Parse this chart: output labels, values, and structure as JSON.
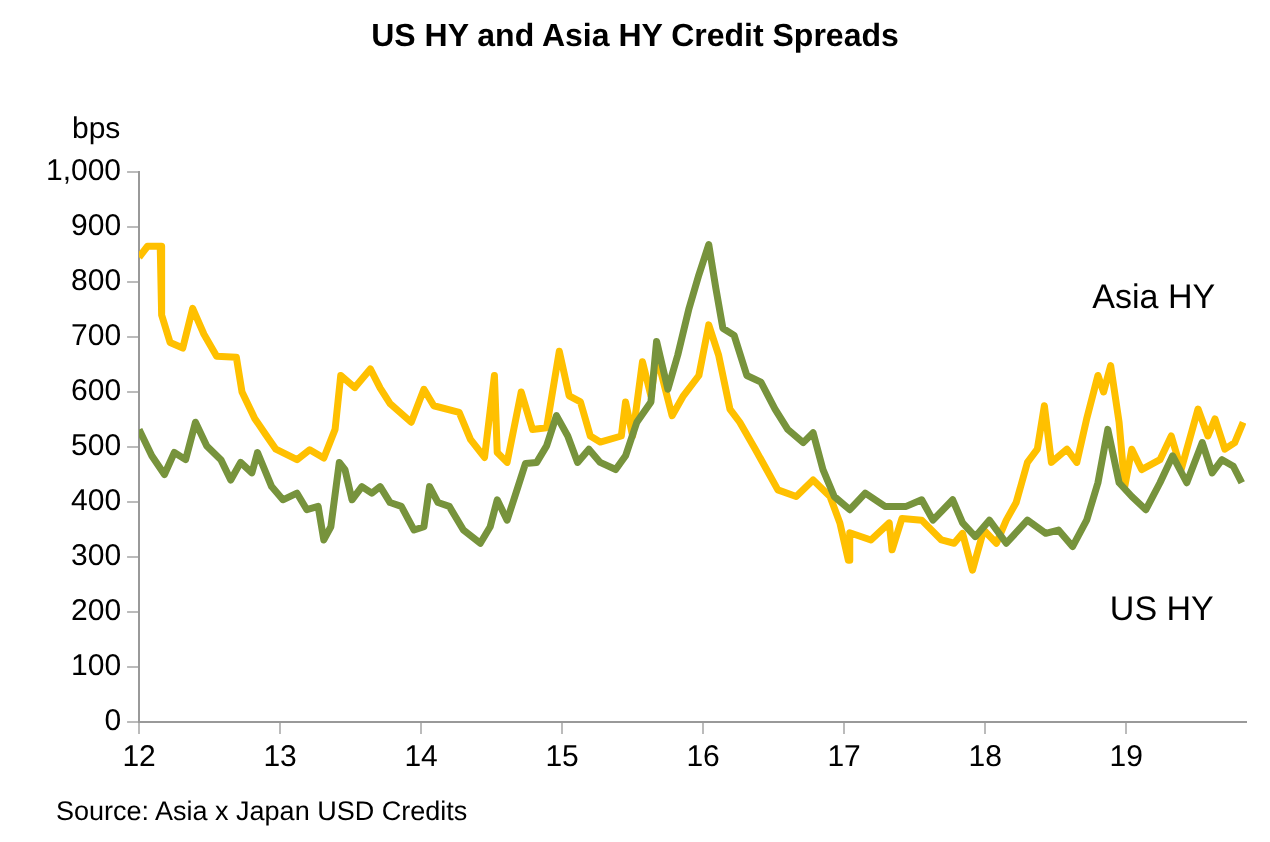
{
  "chart_data": {
    "type": "line",
    "title": "US HY and Asia HY Credit Spreads",
    "ylabel": "bps",
    "annotations": [
      "Source: Asia x Japan USD Credits"
    ],
    "xlim": [
      12,
      19.85
    ],
    "xticks": [
      12,
      13,
      14,
      15,
      16,
      17,
      18,
      19
    ],
    "ylim": [
      0,
      1000
    ],
    "yticks": [
      0,
      100,
      200,
      300,
      400,
      500,
      600,
      700,
      800,
      900,
      {
        "value": 1000,
        "label": "1,000"
      }
    ],
    "grid": false,
    "legend": false,
    "marker": "none",
    "line_style": "solid",
    "series": [
      {
        "name": "Asia HY",
        "color": "#ffc000",
        "x": [
          12.0,
          12.06,
          12.15,
          12.16,
          12.22,
          12.31,
          12.38,
          12.46,
          12.55,
          12.69,
          12.73,
          12.82,
          12.9,
          12.97,
          13.12,
          13.21,
          13.31,
          13.39,
          13.43,
          13.53,
          13.64,
          13.71,
          13.78,
          13.93,
          14.02,
          14.09,
          14.27,
          14.35,
          14.45,
          14.52,
          14.54,
          14.61,
          14.71,
          14.79,
          14.89,
          14.98,
          15.05,
          15.13,
          15.2,
          15.27,
          15.42,
          15.45,
          15.5,
          15.57,
          15.63,
          15.67,
          15.78,
          15.86,
          15.97,
          16.04,
          16.11,
          16.19,
          16.26,
          16.37,
          16.45,
          16.53,
          16.66,
          16.78,
          16.9,
          16.97,
          17.03,
          17.04,
          17.19,
          17.32,
          17.34,
          17.41,
          17.55,
          17.69,
          17.78,
          17.84,
          17.91,
          17.99,
          18.08,
          18.15,
          18.22,
          18.3,
          18.37,
          18.42,
          18.47,
          18.58,
          18.65,
          18.72,
          18.8,
          18.84,
          18.89,
          18.95,
          18.99,
          19.04,
          19.11,
          19.24,
          19.32,
          19.39,
          19.51,
          19.58,
          19.63,
          19.7,
          19.77,
          19.83
        ],
        "values": [
          845,
          865,
          865,
          740,
          690,
          680,
          752,
          705,
          665,
          663,
          600,
          552,
          522,
          496,
          477,
          495,
          480,
          532,
          630,
          608,
          642,
          607,
          579,
          545,
          605,
          575,
          563,
          514,
          481,
          630,
          490,
          472,
          600,
          532,
          535,
          674,
          593,
          582,
          520,
          509,
          520,
          582,
          520,
          655,
          593,
          667,
          557,
          593,
          630,
          722,
          667,
          569,
          545,
          496,
          459,
          422,
          410,
          440,
          410,
          362,
          294,
          344,
          331,
          362,
          313,
          370,
          367,
          331,
          325,
          343,
          276,
          349,
          325,
          367,
          399,
          472,
          496,
          575,
          472,
          496,
          472,
          551,
          630,
          600,
          648,
          545,
          428,
          496,
          459,
          477,
          520,
          459,
          569,
          520,
          551,
          496,
          508,
          545
        ]
      },
      {
        "name": "US HY",
        "color": "#77933c",
        "x": [
          12.0,
          12.09,
          12.18,
          12.25,
          12.33,
          12.4,
          12.48,
          12.58,
          12.65,
          12.72,
          12.8,
          12.84,
          12.94,
          13.02,
          13.12,
          13.19,
          13.27,
          13.31,
          13.36,
          13.42,
          13.46,
          13.51,
          13.58,
          13.65,
          13.71,
          13.78,
          13.86,
          13.95,
          14.02,
          14.06,
          14.12,
          14.2,
          14.3,
          14.42,
          14.49,
          14.54,
          14.61,
          14.68,
          14.74,
          14.82,
          14.89,
          14.96,
          15.04,
          15.11,
          15.19,
          15.27,
          15.38,
          15.45,
          15.53,
          15.63,
          15.67,
          15.75,
          15.82,
          15.9,
          15.97,
          16.04,
          16.09,
          16.14,
          16.22,
          16.31,
          16.41,
          16.51,
          16.6,
          16.71,
          16.78,
          16.85,
          16.93,
          17.04,
          17.15,
          17.29,
          17.44,
          17.55,
          17.63,
          17.77,
          17.84,
          17.93,
          18.03,
          18.15,
          18.3,
          18.43,
          18.52,
          18.62,
          18.72,
          18.8,
          18.87,
          18.95,
          19.04,
          19.14,
          19.24,
          19.33,
          19.43,
          19.54,
          19.61,
          19.68,
          19.76,
          19.82
        ],
        "values": [
          532,
          484,
          450,
          490,
          477,
          545,
          502,
          477,
          440,
          472,
          453,
          490,
          428,
          404,
          416,
          386,
          392,
          331,
          355,
          472,
          459,
          404,
          428,
          416,
          428,
          399,
          392,
          349,
          355,
          428,
          399,
          392,
          349,
          325,
          355,
          404,
          367,
          422,
          470,
          472,
          502,
          557,
          520,
          472,
          496,
          472,
          459,
          484,
          545,
          582,
          692,
          605,
          667,
          752,
          813,
          868,
          789,
          716,
          703,
          630,
          618,
          569,
          532,
          508,
          526,
          459,
          410,
          386,
          416,
          392,
          392,
          404,
          367,
          404,
          362,
          337,
          367,
          325,
          367,
          343,
          349,
          319,
          367,
          435,
          532,
          435,
          410,
          386,
          435,
          484,
          435,
          508,
          453,
          477,
          465,
          435
        ]
      }
    ]
  }
}
